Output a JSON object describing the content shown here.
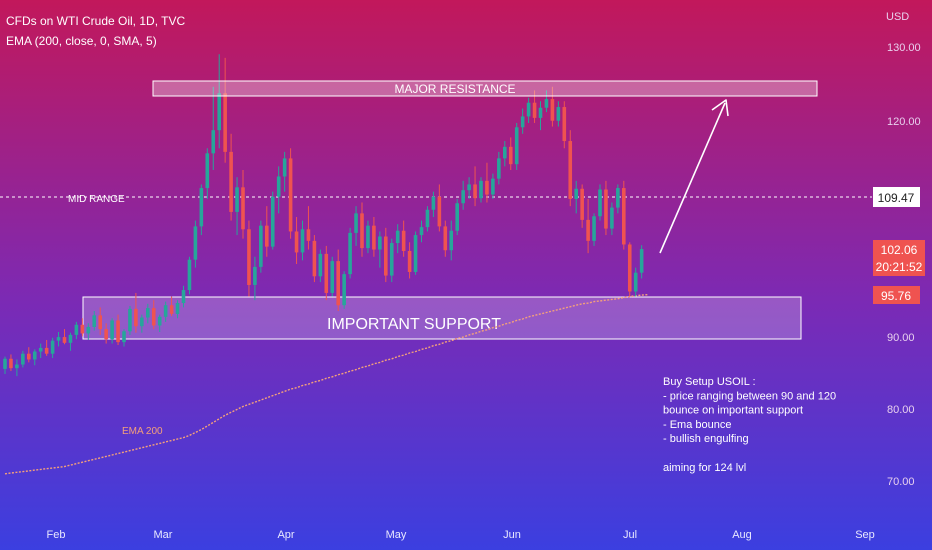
{
  "header": {
    "symbol_line": "CFDs on WTI Crude Oil, 1D, TVC",
    "indicator_line": "EMA (200, close, 0, SMA, 5)"
  },
  "currency_label": "USD",
  "annotations": {
    "resistance": "MAJOR RESISTANCE",
    "support": "IMPORTANT SUPPORT",
    "mid_range": "MID RANGE",
    "ema": "EMA 200",
    "setup_lines": [
      "Buy Setup USOIL :",
      "- price ranging between 90 and 120",
      "  bounce on important support",
      "- Ema bounce",
      "- bullish engulfing",
      "",
      "aiming for 124 lvl"
    ]
  },
  "price_tags": {
    "mid": "109.47",
    "last": "102.06",
    "countdown": "20:21:52",
    "ema": "95.76"
  },
  "colors": {
    "up": "#26a69a",
    "down": "#ef5350",
    "ema": "#f4a07a",
    "bg_top": "#c2185b",
    "bg_bottom": "#3b3fe0"
  },
  "chart_data": {
    "type": "candlestick",
    "x_ticks": [
      "Feb",
      "Mar",
      "Apr",
      "May",
      "Jun",
      "Jul",
      "Aug",
      "Sep"
    ],
    "y_ticks": [
      "70.00",
      "80.00",
      "90.00",
      "120.00",
      "130.00"
    ],
    "ylim": [
      66,
      134
    ],
    "zones": {
      "major_resistance": [
        124,
        126
      ],
      "important_support": [
        89.5,
        95.5
      ]
    },
    "mid_range_level": 109.47,
    "target_level": 124,
    "candles": [
      [
        85.5,
        87.2,
        84.8,
        86.9
      ],
      [
        86.9,
        87.5,
        85.2,
        85.6
      ],
      [
        85.6,
        86.8,
        84.5,
        86.1
      ],
      [
        86.1,
        88.0,
        85.7,
        87.6
      ],
      [
        87.6,
        88.5,
        86.4,
        86.8
      ],
      [
        86.8,
        88.2,
        86.0,
        87.9
      ],
      [
        87.9,
        89.0,
        87.0,
        88.4
      ],
      [
        88.4,
        89.5,
        87.3,
        87.6
      ],
      [
        87.6,
        89.8,
        87.0,
        89.4
      ],
      [
        89.4,
        90.6,
        88.6,
        89.9
      ],
      [
        89.9,
        91.0,
        88.9,
        89.1
      ],
      [
        89.1,
        90.5,
        88.0,
        90.2
      ],
      [
        90.2,
        92.0,
        89.6,
        91.6
      ],
      [
        91.6,
        92.5,
        90.0,
        90.4
      ],
      [
        90.4,
        91.8,
        89.5,
        91.3
      ],
      [
        91.3,
        93.5,
        90.8,
        92.9
      ],
      [
        92.9,
        94.0,
        90.2,
        91.0
      ],
      [
        91.0,
        91.8,
        89.0,
        89.6
      ],
      [
        89.6,
        92.5,
        89.0,
        92.2
      ],
      [
        92.2,
        93.0,
        88.8,
        89.2
      ],
      [
        89.2,
        91.0,
        88.6,
        90.7
      ],
      [
        90.7,
        94.2,
        90.2,
        93.8
      ],
      [
        93.8,
        96.0,
        90.5,
        91.4
      ],
      [
        91.4,
        93.0,
        90.5,
        92.6
      ],
      [
        92.6,
        94.5,
        91.8,
        93.9
      ],
      [
        93.9,
        95.0,
        91.0,
        91.5
      ],
      [
        91.5,
        93.0,
        90.6,
        92.7
      ],
      [
        92.7,
        94.8,
        92.0,
        94.3
      ],
      [
        94.3,
        95.5,
        92.8,
        93.1
      ],
      [
        93.1,
        95.0,
        92.5,
        94.6
      ],
      [
        94.6,
        97.0,
        94.0,
        96.4
      ],
      [
        96.4,
        101.0,
        95.8,
        100.6
      ],
      [
        100.6,
        106.0,
        99.5,
        105.2
      ],
      [
        105.2,
        111.0,
        104.0,
        110.5
      ],
      [
        110.5,
        116.0,
        109.0,
        115.3
      ],
      [
        115.3,
        124.5,
        113.0,
        118.5
      ],
      [
        118.5,
        129.0,
        116.0,
        123.6
      ],
      [
        123.6,
        128.5,
        114.0,
        115.5
      ],
      [
        115.5,
        118.0,
        106.0,
        107.2
      ],
      [
        107.2,
        112.0,
        104.0,
        110.6
      ],
      [
        110.6,
        113.0,
        103.5,
        104.8
      ],
      [
        104.8,
        106.0,
        95.5,
        97.1
      ],
      [
        97.1,
        101.0,
        95.0,
        99.6
      ],
      [
        99.6,
        106.0,
        98.8,
        105.3
      ],
      [
        105.3,
        108.0,
        101.0,
        102.4
      ],
      [
        102.4,
        110.0,
        102.0,
        109.3
      ],
      [
        109.3,
        113.5,
        107.0,
        112.1
      ],
      [
        112.1,
        115.5,
        110.0,
        114.6
      ],
      [
        114.6,
        116.0,
        103.5,
        104.5
      ],
      [
        104.5,
        106.5,
        100.0,
        101.6
      ],
      [
        101.6,
        106.0,
        100.5,
        104.8
      ],
      [
        104.8,
        108.0,
        102.0,
        103.2
      ],
      [
        103.2,
        104.0,
        97.5,
        98.3
      ],
      [
        98.3,
        102.0,
        97.5,
        101.4
      ],
      [
        101.4,
        102.5,
        95.0,
        96.0
      ],
      [
        96.0,
        101.0,
        95.5,
        100.4
      ],
      [
        100.4,
        102.0,
        93.5,
        94.3
      ],
      [
        94.3,
        99.0,
        93.8,
        98.6
      ],
      [
        98.6,
        105.0,
        98.0,
        104.3
      ],
      [
        104.3,
        108.0,
        102.5,
        107.0
      ],
      [
        107.0,
        108.5,
        101.0,
        102.2
      ],
      [
        102.2,
        106.0,
        101.5,
        105.3
      ],
      [
        105.3,
        106.5,
        101.0,
        102.0
      ],
      [
        102.0,
        104.5,
        99.5,
        103.8
      ],
      [
        103.8,
        105.0,
        97.5,
        98.4
      ],
      [
        98.4,
        103.5,
        97.5,
        102.9
      ],
      [
        102.9,
        105.5,
        101.5,
        104.6
      ],
      [
        104.6,
        106.0,
        101.0,
        101.8
      ],
      [
        101.8,
        103.0,
        98.0,
        98.9
      ],
      [
        98.9,
        104.5,
        98.5,
        104.0
      ],
      [
        104.0,
        106.0,
        103.0,
        105.1
      ],
      [
        105.1,
        108.0,
        104.5,
        107.5
      ],
      [
        107.5,
        110.0,
        106.5,
        109.3
      ],
      [
        109.3,
        111.0,
        104.5,
        105.2
      ],
      [
        105.2,
        106.0,
        101.0,
        101.9
      ],
      [
        101.9,
        106.0,
        100.5,
        104.6
      ],
      [
        104.6,
        109.0,
        104.0,
        108.4
      ],
      [
        108.4,
        111.5,
        107.5,
        110.2
      ],
      [
        110.2,
        112.0,
        109.0,
        111.0
      ],
      [
        111.0,
        113.5,
        108.0,
        109.1
      ],
      [
        109.1,
        112.0,
        108.5,
        111.5
      ],
      [
        111.5,
        114.0,
        108.5,
        109.6
      ],
      [
        109.6,
        112.5,
        109.0,
        111.8
      ],
      [
        111.8,
        115.5,
        111.0,
        114.6
      ],
      [
        114.6,
        117.0,
        113.5,
        116.2
      ],
      [
        116.2,
        117.5,
        113.0,
        113.8
      ],
      [
        113.8,
        119.5,
        113.0,
        118.9
      ],
      [
        118.9,
        121.5,
        118.0,
        120.4
      ],
      [
        120.4,
        123.0,
        119.5,
        122.3
      ],
      [
        122.3,
        124.0,
        119.5,
        120.2
      ],
      [
        120.2,
        122.5,
        118.5,
        121.6
      ],
      [
        121.6,
        124.0,
        121.0,
        122.8
      ],
      [
        122.8,
        124.5,
        119.0,
        119.8
      ],
      [
        119.8,
        122.5,
        119.0,
        121.7
      ],
      [
        121.7,
        122.5,
        116.0,
        117.0
      ],
      [
        117.0,
        118.5,
        108.0,
        109.0
      ],
      [
        109.0,
        111.5,
        107.0,
        110.4
      ],
      [
        110.4,
        111.0,
        105.0,
        106.1
      ],
      [
        106.1,
        109.0,
        101.5,
        103.2
      ],
      [
        103.2,
        107.0,
        102.5,
        106.6
      ],
      [
        106.6,
        111.0,
        106.0,
        110.3
      ],
      [
        110.3,
        111.5,
        104.0,
        104.9
      ],
      [
        104.9,
        108.5,
        104.0,
        107.8
      ],
      [
        107.8,
        111.0,
        107.0,
        110.5
      ],
      [
        110.5,
        111.5,
        102.0,
        102.7
      ],
      [
        102.7,
        103.0,
        95.5,
        96.2
      ],
      [
        96.2,
        99.5,
        95.5,
        98.8
      ],
      [
        98.8,
        102.6,
        98.0,
        102.06
      ]
    ],
    "ema_series": [
      71.0,
      71.1,
      71.2,
      71.3,
      71.4,
      71.5,
      71.6,
      71.7,
      71.8,
      71.9,
      72.0,
      72.2,
      72.4,
      72.6,
      72.8,
      73.0,
      73.2,
      73.4,
      73.6,
      73.8,
      74.0,
      74.2,
      74.4,
      74.6,
      74.8,
      75.0,
      75.2,
      75.4,
      75.6,
      75.8,
      76.0,
      76.3,
      76.7,
      77.1,
      77.6,
      78.1,
      78.6,
      79.1,
      79.5,
      79.9,
      80.3,
      80.6,
      80.9,
      81.2,
      81.5,
      81.8,
      82.1,
      82.4,
      82.7,
      82.9,
      83.2,
      83.4,
      83.7,
      83.9,
      84.2,
      84.4,
      84.7,
      84.9,
      85.2,
      85.4,
      85.7,
      85.9,
      86.2,
      86.4,
      86.7,
      86.9,
      87.2,
      87.4,
      87.7,
      87.9,
      88.2,
      88.4,
      88.7,
      88.9,
      89.2,
      89.4,
      89.7,
      89.9,
      90.2,
      90.4,
      90.7,
      90.9,
      91.2,
      91.4,
      91.7,
      91.9,
      92.2,
      92.4,
      92.7,
      92.9,
      93.1,
      93.3,
      93.5,
      93.7,
      93.9,
      94.1,
      94.3,
      94.5,
      94.6,
      94.8,
      94.9,
      95.0,
      95.1,
      95.2,
      95.35,
      95.5,
      95.6,
      95.7,
      95.76
    ]
  }
}
